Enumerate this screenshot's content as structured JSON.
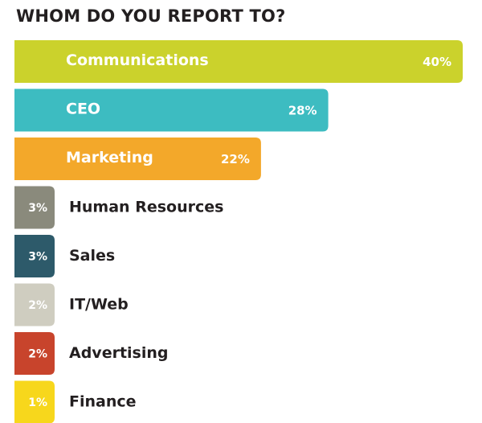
{
  "chart_data": {
    "type": "bar",
    "orientation": "horizontal",
    "title": "WHOM DO YOU REPORT TO?",
    "xlabel": "",
    "ylabel": "",
    "legend": "none",
    "grid": false,
    "categories": [
      "Communications",
      "CEO",
      "Marketing",
      "Human Resources",
      "Sales",
      "IT/Web",
      "Advertising",
      "Finance"
    ],
    "values": [
      40,
      28,
      22,
      3,
      3,
      2,
      2,
      1
    ],
    "value_labels": [
      "40%",
      "28%",
      "22%",
      "3%",
      "3%",
      "2%",
      "2%",
      "1%"
    ],
    "colors": [
      "#cbd22c",
      "#3dbcc1",
      "#f3a82a",
      "#8a8a7c",
      "#2d5a6a",
      "#cfcdc0",
      "#c8442c",
      "#f7d71c"
    ],
    "label_colors": [
      "#ffffff",
      "#ffffff",
      "#ffffff",
      "#231f20",
      "#231f20",
      "#231f20",
      "#231f20",
      "#231f20"
    ]
  }
}
